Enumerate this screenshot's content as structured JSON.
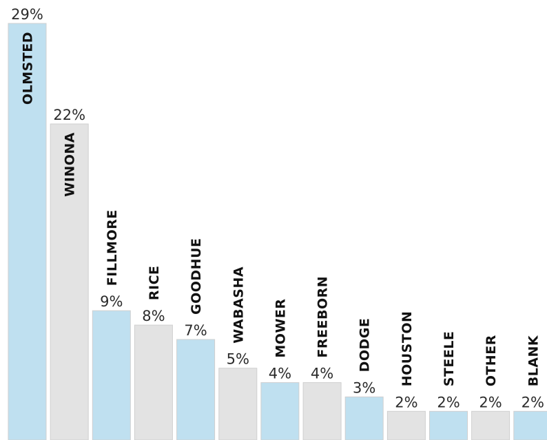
{
  "chart_data": {
    "type": "bar",
    "title": "",
    "xlabel": "",
    "ylabel": "",
    "unit": "%",
    "ylim": [
      0,
      29
    ],
    "grid": false,
    "legend": "none",
    "categories": [
      "OLMSTED",
      "WINONA",
      "FILLMORE",
      "RICE",
      "GOODHUE",
      "WABASHA",
      "MOWER",
      "FREEBORN",
      "DODGE",
      "HOUSTON",
      "STEELE",
      "OTHER",
      "BLANK"
    ],
    "values": [
      29,
      22,
      9,
      8,
      7,
      5,
      4,
      4,
      3,
      2,
      2,
      2,
      2
    ],
    "value_labels": [
      "29%",
      "22%",
      "9%",
      "8%",
      "7%",
      "5%",
      "4%",
      "4%",
      "3%",
      "2%",
      "2%",
      "2%",
      "2%"
    ],
    "colors": {
      "blue": "#bfe0f0",
      "gray": "#e3e3e3",
      "bar_border": "#cfcfcf"
    },
    "bar_colors": [
      "blue",
      "gray",
      "blue",
      "gray",
      "blue",
      "gray",
      "blue",
      "gray",
      "blue",
      "gray",
      "blue",
      "gray",
      "blue"
    ]
  }
}
